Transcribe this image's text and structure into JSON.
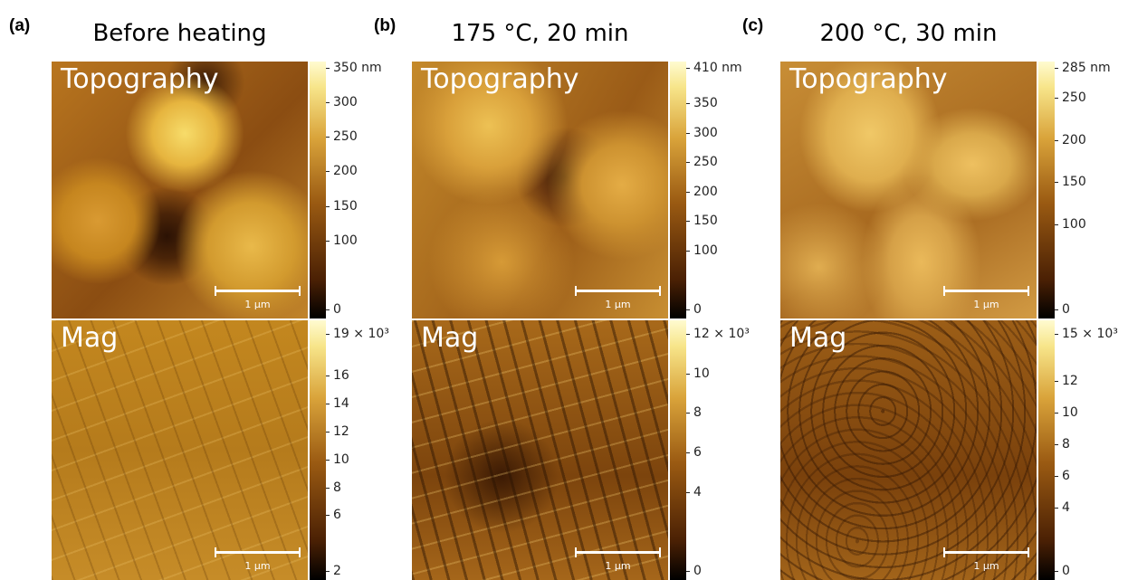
{
  "panels": [
    {
      "label": "(a)",
      "title": "Before heating",
      "images": [
        {
          "name": "Topography",
          "scale_bar": "1 µm",
          "colorbar": {
            "lim": [
              0,
              350
            ],
            "ticks": [
              {
                "value": 350,
                "label": "350 nm"
              },
              300,
              250,
              200,
              150,
              100,
              0
            ]
          }
        },
        {
          "name": "Mag",
          "scale_bar": "1 µm",
          "colorbar": {
            "lim": [
              2,
              19
            ],
            "ticks": [
              {
                "value": 19,
                "label": "19 × 10³"
              },
              16,
              14,
              12,
              10,
              8,
              6,
              2
            ]
          }
        }
      ]
    },
    {
      "label": "(b)",
      "title": "175 °C, 20 min",
      "images": [
        {
          "name": "Topography",
          "scale_bar": "1 µm",
          "colorbar": {
            "lim": [
              0,
              410
            ],
            "ticks": [
              {
                "value": 410,
                "label": "410 nm"
              },
              350,
              300,
              250,
              200,
              150,
              100,
              0
            ]
          }
        },
        {
          "name": "Mag",
          "scale_bar": "1 µm",
          "colorbar": {
            "lim": [
              0,
              12
            ],
            "ticks": [
              {
                "value": 12,
                "label": "12 × 10³"
              },
              10,
              8,
              6,
              4,
              0
            ]
          }
        }
      ]
    },
    {
      "label": "(c)",
      "title": "200 °C, 30 min",
      "images": [
        {
          "name": "Topography",
          "scale_bar": "1 µm",
          "colorbar": {
            "lim": [
              0,
              285
            ],
            "ticks": [
              {
                "value": 285,
                "label": "285 nm"
              },
              250,
              200,
              150,
              100,
              0
            ]
          }
        },
        {
          "name": "Mag",
          "scale_bar": "1 µm",
          "colorbar": {
            "lim": [
              0,
              15
            ],
            "ticks": [
              {
                "value": 15,
                "label": "15 × 10³"
              },
              12,
              10,
              8,
              6,
              4,
              0
            ]
          }
        }
      ]
    }
  ]
}
